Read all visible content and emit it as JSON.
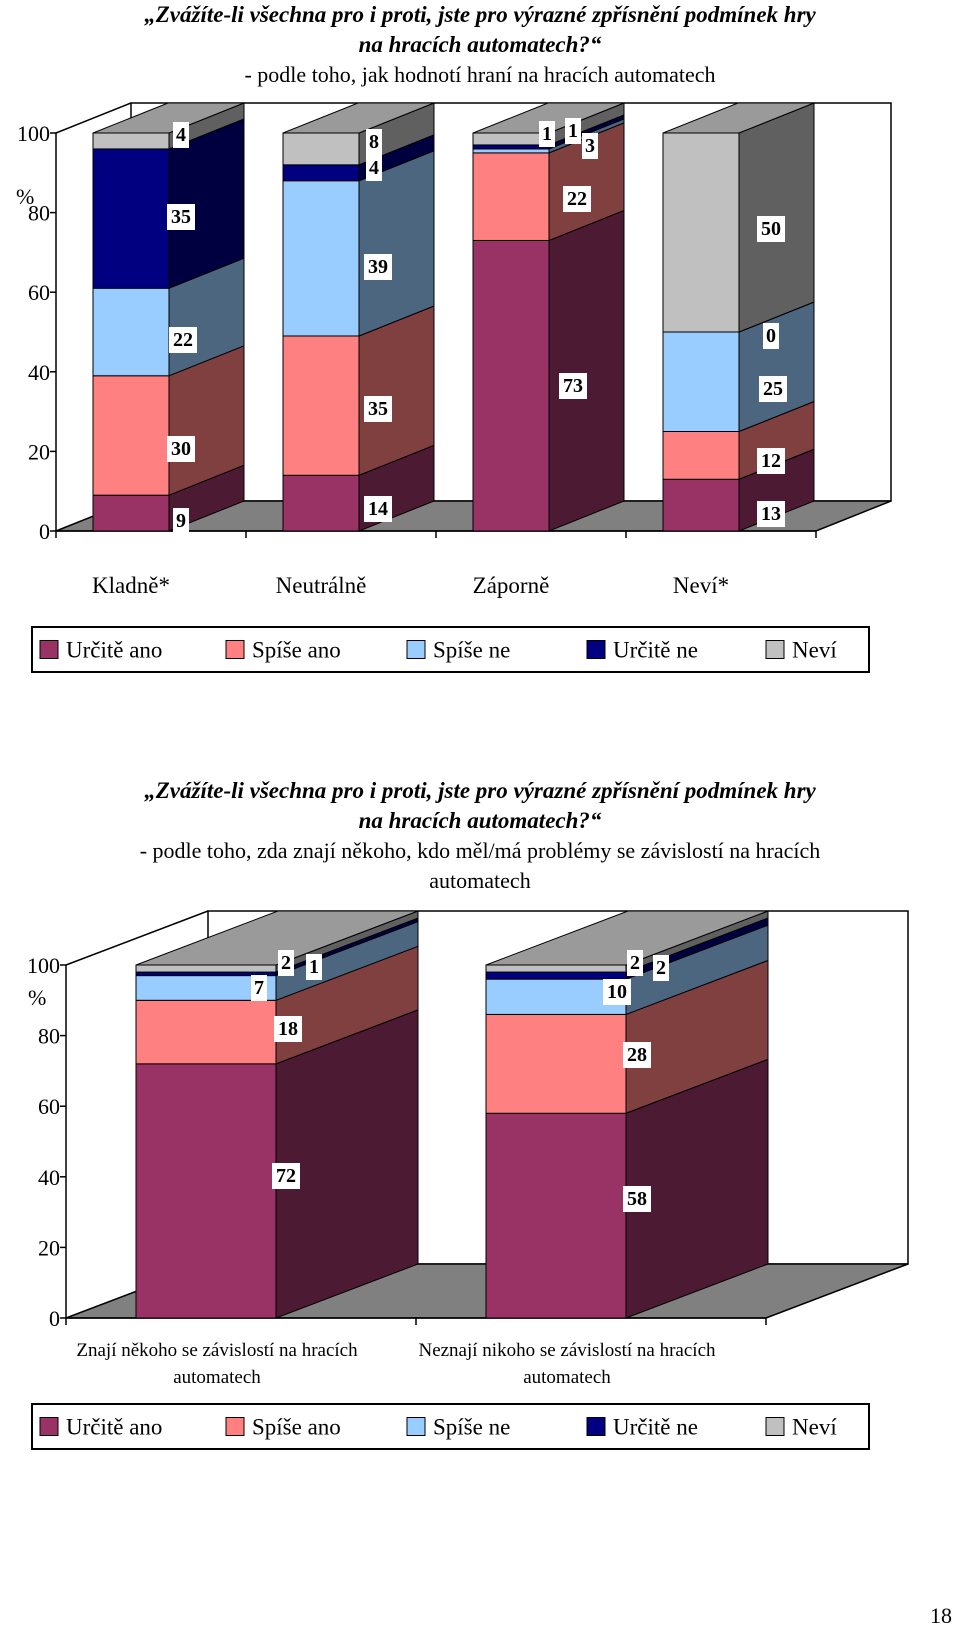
{
  "page_number": "18",
  "legend": [
    {
      "label": "Určitě ano",
      "color": "#993366"
    },
    {
      "label": "Spíše ano",
      "color": "#FF8080"
    },
    {
      "label": "Spíše ne",
      "color": "#99CCFF"
    },
    {
      "label": "Určitě ne",
      "color": "#000080"
    },
    {
      "label": "Neví",
      "color": "#C0C0C0"
    }
  ],
  "chart_data": [
    {
      "type": "bar",
      "stacked": true,
      "three_d": true,
      "title_line1": "„Zvážíte-li všechna pro i proti, jste pro výrazné zpřísnění podmínek hry",
      "title_line2": "na hracích automatech?“",
      "subtitle_line1": "- podle toho, jak hodnotí hraní na hracích automatech",
      "subtitle_line2": "",
      "ylabel": "%",
      "ylim": [
        0,
        100
      ],
      "yticks": [
        "0",
        "20",
        "40",
        "60",
        "80",
        "100"
      ],
      "categories": [
        "Kladně*",
        "Neutrálně",
        "Záporně",
        "Neví*"
      ],
      "legend_position": "bottom",
      "series": [
        {
          "name": "Určitě ano",
          "color": "#993366",
          "values": [
            9,
            14,
            73,
            13
          ]
        },
        {
          "name": "Spíše ano",
          "color": "#FF8080",
          "values": [
            30,
            35,
            22,
            12
          ]
        },
        {
          "name": "Spíše ne",
          "color": "#99CCFF",
          "values": [
            22,
            39,
            1,
            25
          ]
        },
        {
          "name": "Určitě ne",
          "color": "#000080",
          "values": [
            35,
            4,
            1,
            0
          ]
        },
        {
          "name": "Neví",
          "color": "#C0C0C0",
          "values": [
            4,
            8,
            3,
            50
          ]
        }
      ]
    },
    {
      "type": "bar",
      "stacked": true,
      "three_d": true,
      "title_line1": "„Zvážíte-li všechna pro i proti, jste pro výrazné zpřísnění podmínek hry",
      "title_line2": "na hracích automatech?“",
      "subtitle_line1": "- podle toho, zda znají někoho, kdo měl/má problémy se závislostí na hracích",
      "subtitle_line2": "automatech",
      "ylabel": "%",
      "ylim": [
        0,
        100
      ],
      "yticks": [
        "0",
        "20",
        "40",
        "60",
        "80",
        "100"
      ],
      "categories": [
        "Znají někoho se závislostí na hracích automatech",
        "Neznají nikoho se závislostí na hracích automatech"
      ],
      "category_lines": [
        [
          "Znají někoho se závislostí na hracích",
          "automatech"
        ],
        [
          "Neznají nikoho se závislostí na hracích",
          "automatech"
        ]
      ],
      "legend_position": "bottom",
      "series": [
        {
          "name": "Určitě ano",
          "color": "#993366",
          "values": [
            72,
            58
          ]
        },
        {
          "name": "Spíše ano",
          "color": "#FF8080",
          "values": [
            18,
            28
          ]
        },
        {
          "name": "Spíše ne",
          "color": "#99CCFF",
          "values": [
            7,
            10
          ]
        },
        {
          "name": "Určitě ne",
          "color": "#000080",
          "values": [
            1,
            2
          ]
        },
        {
          "name": "Neví",
          "color": "#C0C0C0",
          "values": [
            2,
            2
          ]
        }
      ]
    }
  ]
}
